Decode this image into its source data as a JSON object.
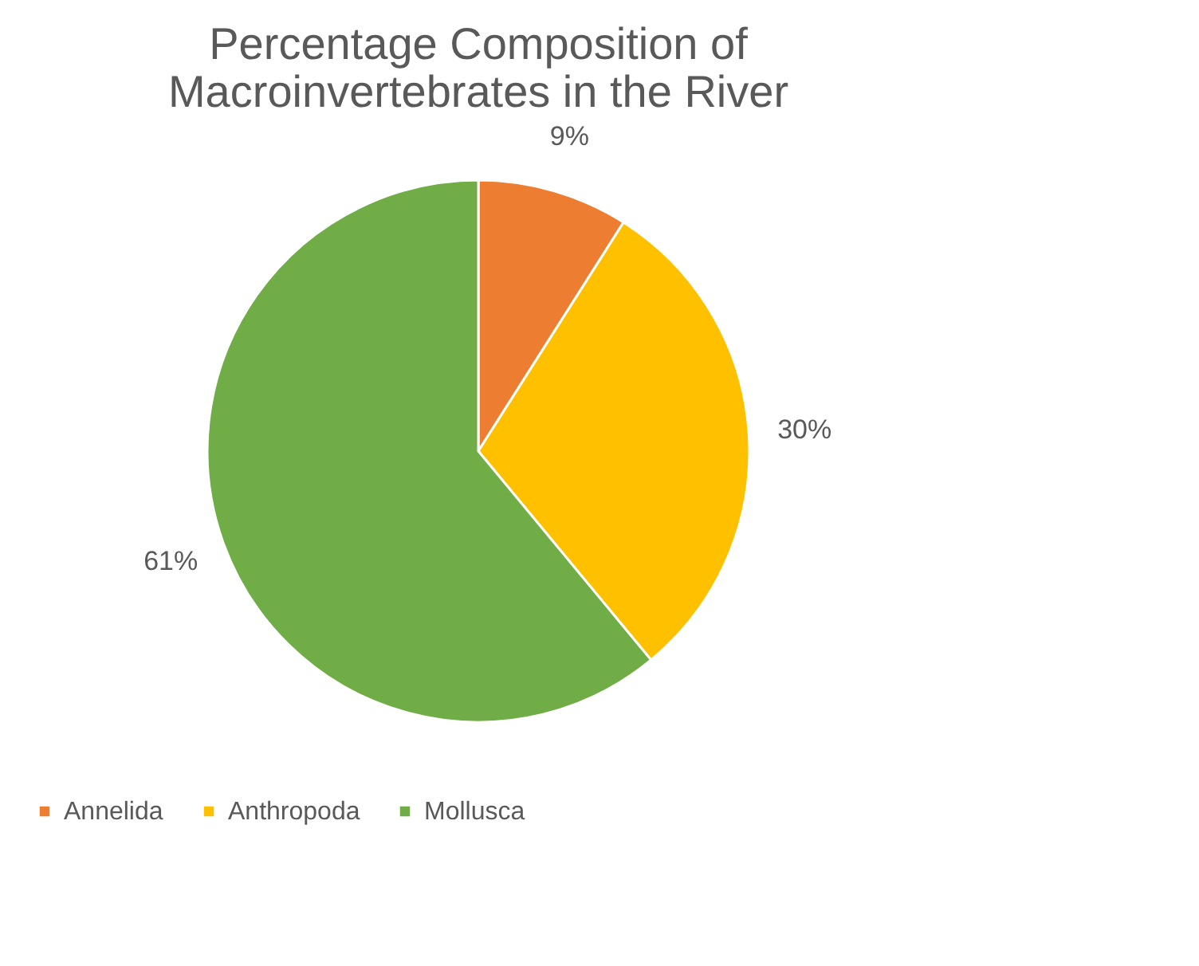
{
  "chart_data": {
    "type": "pie",
    "title": [
      "Percentage Composition of",
      "Macroinvertebrates in the River"
    ],
    "categories": [
      "Annelida",
      "Anthropoda",
      "Mollusca"
    ],
    "values": [
      9,
      30,
      61
    ],
    "colors": [
      "#ed7d31",
      "#ffc000",
      "#70ad47"
    ],
    "value_labels": [
      "9%",
      "30%",
      "61%"
    ],
    "legend": "bottom"
  }
}
